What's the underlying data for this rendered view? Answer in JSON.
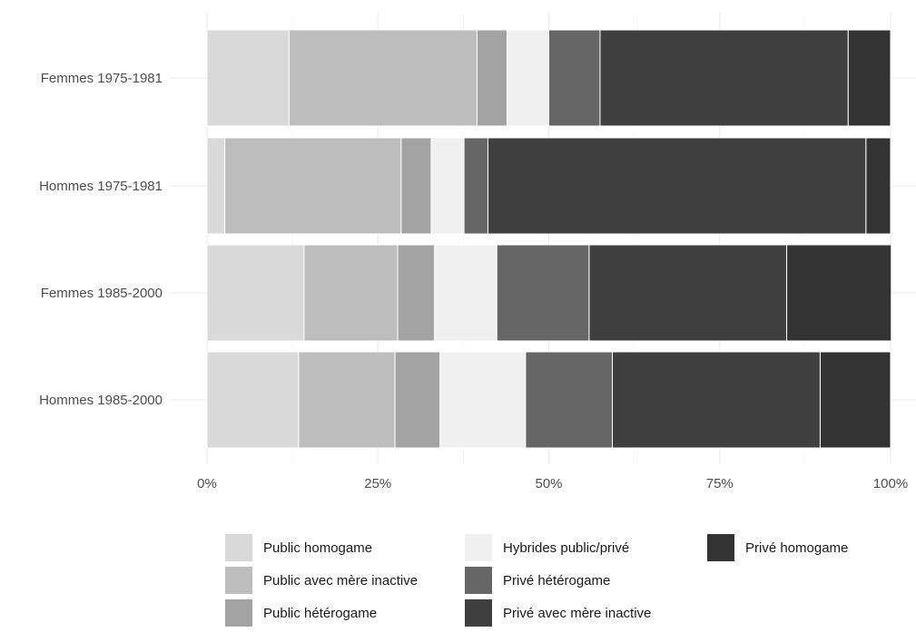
{
  "chart_data": {
    "type": "bar",
    "orientation": "horizontal",
    "stacked": true,
    "normalized": true,
    "title": "",
    "xlabel": "",
    "ylabel": "",
    "xlim": [
      0,
      100
    ],
    "x_ticks": [
      "0%",
      "25%",
      "50%",
      "75%",
      "100%"
    ],
    "grid": true,
    "legend_position": "bottom",
    "categories": [
      "Femmes 1975-1981",
      "Hommes 1975-1981",
      "Femmes 1985-2000",
      "Hommes 1985-2000"
    ],
    "series": [
      {
        "name": "Public homogame",
        "color": "#d9d9d9",
        "values": [
          12.0,
          2.6,
          14.2,
          13.4
        ]
      },
      {
        "name": "Public avec mère inactive",
        "color": "#bdbdbd",
        "values": [
          27.5,
          25.8,
          13.7,
          14.1
        ]
      },
      {
        "name": "Public hétérogame",
        "color": "#a3a3a3",
        "values": [
          4.4,
          4.4,
          5.4,
          6.6
        ]
      },
      {
        "name": "Hybrides public/privé",
        "color": "#f0f0f0",
        "values": [
          6.1,
          4.8,
          9.1,
          12.5
        ]
      },
      {
        "name": "Privé hétérogame",
        "color": "#666666",
        "values": [
          7.5,
          3.5,
          13.5,
          12.7
        ]
      },
      {
        "name": "Privé avec mère inactive",
        "color": "#3f3f3f",
        "values": [
          36.3,
          55.3,
          28.9,
          30.4
        ]
      },
      {
        "name": "Privé homogame",
        "color": "#333333",
        "values": [
          6.2,
          3.6,
          15.3,
          10.3
        ]
      }
    ]
  }
}
